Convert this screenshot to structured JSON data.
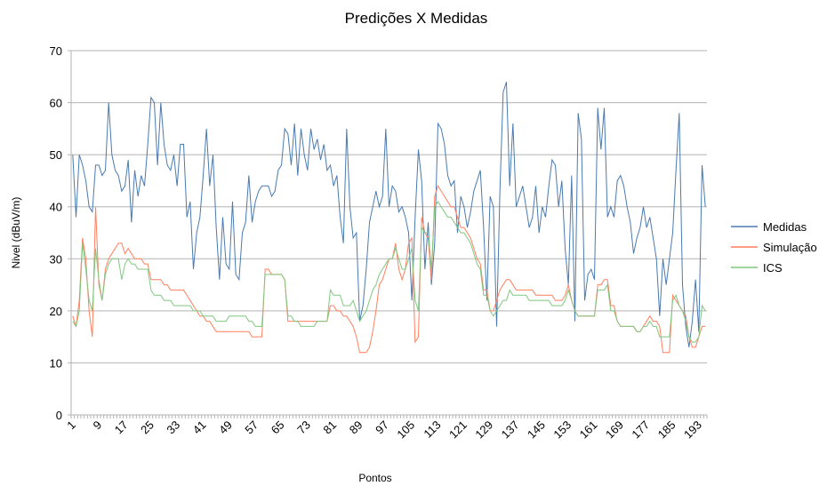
{
  "chart_data": {
    "type": "line",
    "title": "Predições X Medidas",
    "x_label": "Pontos",
    "y_label": "Nivel (dBuV/m)",
    "categories": [
      "1",
      null,
      null,
      null,
      null,
      null,
      null,
      null,
      "9",
      null,
      null,
      null,
      null,
      null,
      null,
      null,
      "17",
      null,
      null,
      null,
      null,
      null,
      null,
      null,
      "25",
      null,
      null,
      null,
      null,
      null,
      null,
      null,
      "33",
      null,
      null,
      null,
      null,
      null,
      null,
      null,
      "41",
      null,
      null,
      null,
      null,
      null,
      null,
      null,
      "49",
      null,
      null,
      null,
      null,
      null,
      null,
      null,
      "57",
      null,
      null,
      null,
      null,
      null,
      null,
      null,
      "65",
      null,
      null,
      null,
      null,
      null,
      null,
      null,
      "73",
      null,
      null,
      null,
      null,
      null,
      null,
      null,
      "81",
      null,
      null,
      null,
      null,
      null,
      null,
      null,
      "89",
      null,
      null,
      null,
      null,
      null,
      null,
      null,
      "97",
      null,
      null,
      null,
      null,
      null,
      null,
      null,
      "105",
      null,
      null,
      null,
      null,
      null,
      null,
      null,
      "113",
      null,
      null,
      null,
      null,
      null,
      null,
      null,
      "121",
      null,
      null,
      null,
      null,
      null,
      null,
      null,
      "129",
      null,
      null,
      null,
      null,
      null,
      null,
      null,
      "137",
      null,
      null,
      null,
      null,
      null,
      null,
      null,
      "145",
      null,
      null,
      null,
      null,
      null,
      null,
      null,
      "153",
      null,
      null,
      null,
      null,
      null,
      null,
      null,
      "161",
      null,
      null,
      null,
      null,
      null,
      null,
      null,
      "169",
      null,
      null,
      null,
      null,
      null,
      null,
      null,
      "177",
      null,
      null,
      null,
      null,
      null,
      null,
      null,
      "185",
      null,
      null,
      null,
      null,
      null,
      null,
      null,
      "193",
      null,
      null
    ],
    "series": [
      {
        "name": "Medidas",
        "color": "#4a7ab0",
        "values": [
          50,
          38,
          50,
          48,
          45,
          40,
          39,
          48,
          48,
          46,
          47,
          60,
          50,
          47,
          46,
          43,
          44,
          49,
          37,
          47,
          42,
          46,
          44,
          52,
          61,
          60,
          48,
          60,
          52,
          48,
          47,
          50,
          44,
          52,
          52,
          38,
          41,
          28,
          35,
          38,
          46,
          55,
          44,
          50,
          36,
          26,
          38,
          29,
          28,
          41,
          27,
          26,
          35,
          37,
          46,
          37,
          41,
          43,
          44,
          44,
          44,
          42,
          43,
          47,
          48,
          55,
          54,
          48,
          56,
          46,
          55,
          50,
          47,
          55,
          51,
          53,
          49,
          52,
          47,
          48,
          44,
          46,
          38,
          33,
          55,
          40,
          34,
          35,
          18,
          21,
          28,
          37,
          40,
          43,
          40,
          42,
          55,
          40,
          44,
          43,
          39,
          40,
          38,
          35,
          22,
          38,
          51,
          45,
          28,
          37,
          25,
          33,
          56,
          55,
          52,
          46,
          44,
          45,
          35,
          42,
          40,
          36,
          39,
          43,
          45,
          47,
          36,
          22,
          42,
          40,
          17,
          43,
          62,
          64,
          44,
          56,
          40,
          42,
          44,
          40,
          36,
          38,
          44,
          35,
          40,
          38,
          44,
          49,
          48,
          40,
          45,
          32,
          25,
          46,
          18,
          58,
          53,
          22,
          27,
          28,
          26,
          59,
          51,
          59,
          38,
          40,
          38,
          45,
          46,
          44,
          40,
          37,
          31,
          34,
          36,
          40,
          36,
          38,
          34,
          30,
          19,
          30,
          25,
          30,
          35,
          47,
          58,
          25,
          17,
          13,
          18,
          26,
          16,
          48,
          40
        ]
      },
      {
        "name": "Simulação",
        "color": "#ff7f5e",
        "values": [
          19,
          17,
          22,
          34,
          30,
          20,
          15,
          40,
          25,
          22,
          28,
          30,
          31,
          32,
          33,
          33,
          31,
          32,
          31,
          30,
          30,
          30,
          29,
          29,
          26,
          26,
          26,
          26,
          25,
          25,
          24,
          24,
          24,
          24,
          24,
          23,
          22,
          21,
          20,
          19,
          19,
          18,
          18,
          17,
          16,
          16,
          16,
          16,
          16,
          16,
          16,
          16,
          16,
          16,
          16,
          15,
          15,
          15,
          15,
          28,
          28,
          27,
          27,
          27,
          27,
          26,
          18,
          18,
          18,
          18,
          18,
          18,
          18,
          18,
          18,
          18,
          18,
          18,
          18,
          21,
          21,
          20,
          20,
          19,
          19,
          18,
          17,
          15,
          12,
          12,
          12,
          13,
          16,
          20,
          25,
          26,
          28,
          30,
          30,
          33,
          28,
          26,
          28,
          33,
          34,
          14,
          15,
          38,
          35,
          34,
          26,
          42,
          44,
          43,
          42,
          41,
          40,
          40,
          38,
          36,
          36,
          35,
          34,
          32,
          30,
          29,
          24,
          24,
          20,
          20,
          22,
          24,
          25,
          26,
          26,
          25,
          24,
          24,
          24,
          24,
          24,
          24,
          23,
          23,
          23,
          23,
          23,
          23,
          22,
          22,
          22,
          23,
          25,
          22,
          20,
          19,
          19,
          19,
          19,
          19,
          19,
          25,
          25,
          26,
          26,
          21,
          21,
          18,
          17,
          17,
          17,
          17,
          17,
          16,
          16,
          17,
          18,
          19,
          18,
          18,
          17,
          12,
          12,
          12,
          23,
          22,
          21,
          20,
          19,
          15,
          13,
          13,
          15,
          17,
          17
        ]
      },
      {
        "name": "ICS",
        "color": "#7fc77f",
        "values": [
          18,
          17,
          20,
          33,
          28,
          22,
          20,
          32,
          26,
          22,
          27,
          29,
          30,
          30,
          30,
          26,
          29,
          30,
          29,
          29,
          28,
          28,
          28,
          28,
          24,
          23,
          23,
          23,
          22,
          22,
          22,
          21,
          21,
          21,
          21,
          21,
          21,
          20,
          20,
          20,
          19,
          19,
          19,
          19,
          18,
          18,
          18,
          18,
          19,
          19,
          19,
          19,
          19,
          19,
          18,
          18,
          17,
          17,
          17,
          27,
          27,
          27,
          27,
          27,
          27,
          26,
          19,
          19,
          18,
          18,
          17,
          17,
          17,
          17,
          17,
          18,
          18,
          18,
          18,
          24,
          23,
          23,
          23,
          21,
          21,
          21,
          22,
          20,
          18,
          19,
          20,
          22,
          24,
          25,
          27,
          28,
          29,
          30,
          30,
          32,
          30,
          28,
          28,
          30,
          32,
          22,
          20,
          36,
          35,
          35,
          28,
          40,
          41,
          40,
          39,
          38,
          38,
          37,
          36,
          35,
          35,
          34,
          33,
          31,
          29,
          28,
          23,
          23,
          20,
          19,
          20,
          21,
          22,
          22,
          24,
          23,
          23,
          23,
          23,
          23,
          22,
          22,
          22,
          22,
          22,
          22,
          22,
          21,
          21,
          21,
          21,
          22,
          24,
          22,
          20,
          19,
          19,
          19,
          19,
          19,
          19,
          24,
          24,
          24,
          25,
          20,
          20,
          18,
          17,
          17,
          17,
          17,
          17,
          16,
          16,
          17,
          17,
          18,
          17,
          17,
          15,
          15,
          15,
          15,
          22,
          23,
          21,
          20,
          18,
          15,
          14,
          14,
          15,
          21,
          20
        ]
      }
    ],
    "ylim": [
      0,
      70
    ],
    "yticks": [
      0,
      10,
      20,
      30,
      40,
      50,
      60,
      70
    ],
    "grid": true,
    "legend": "right"
  }
}
